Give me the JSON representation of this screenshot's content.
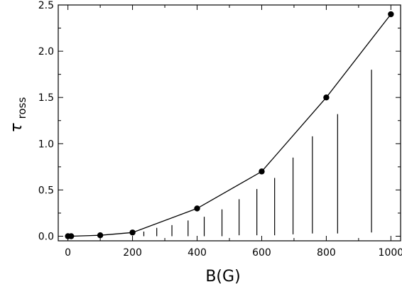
{
  "chart_data": {
    "type": "line",
    "xlabel": "B(G)",
    "ylabel": "τ",
    "ylabel_sub": "ross",
    "xlim": [
      -30,
      1030
    ],
    "ylim": [
      -0.05,
      2.5
    ],
    "x_ticks": [
      0,
      200,
      400,
      600,
      800,
      1000
    ],
    "x_tick_labels": [
      "0",
      "200",
      "400",
      "600",
      "800",
      "1000"
    ],
    "y_ticks": [
      0.0,
      0.5,
      1.0,
      1.5,
      2.0,
      2.5
    ],
    "y_tick_labels": [
      "0.0",
      "0.5",
      "1.0",
      "1.5",
      "2.0",
      "2.5"
    ],
    "grid": false,
    "series": [
      {
        "x": [
          0,
          10,
          100,
          200,
          400,
          600,
          800,
          1000
        ],
        "y": [
          0.0,
          0.0,
          0.01,
          0.04,
          0.3,
          0.7,
          1.5,
          2.4
        ],
        "marker": "filled-circle",
        "color": "#000000"
      }
    ],
    "vertical_segments": [
      {
        "x": 235,
        "y0": 0.0,
        "y1": 0.05
      },
      {
        "x": 275,
        "y0": 0.0,
        "y1": 0.09
      },
      {
        "x": 322,
        "y0": 0.0,
        "y1": 0.12
      },
      {
        "x": 372,
        "y0": 0.0,
        "y1": 0.17
      },
      {
        "x": 422,
        "y0": 0.0,
        "y1": 0.21
      },
      {
        "x": 477,
        "y0": 0.0,
        "y1": 0.29
      },
      {
        "x": 530,
        "y0": 0.01,
        "y1": 0.4
      },
      {
        "x": 585,
        "y0": 0.01,
        "y1": 0.51
      },
      {
        "x": 640,
        "y0": 0.01,
        "y1": 0.63
      },
      {
        "x": 697,
        "y0": 0.02,
        "y1": 0.85
      },
      {
        "x": 757,
        "y0": 0.03,
        "y1": 1.08
      },
      {
        "x": 835,
        "y0": 0.03,
        "y1": 1.32
      },
      {
        "x": 940,
        "y0": 0.04,
        "y1": 1.8
      }
    ]
  }
}
